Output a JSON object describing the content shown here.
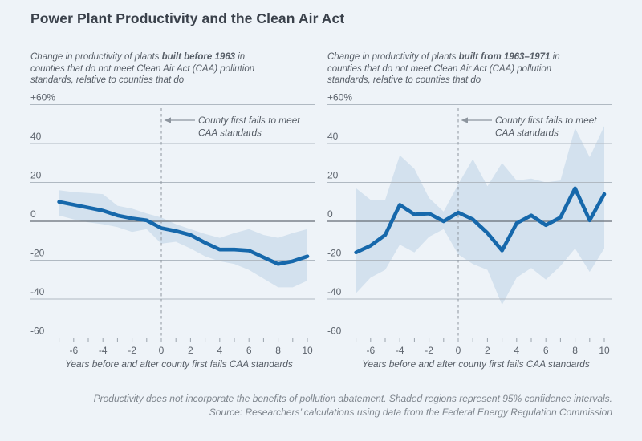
{
  "title": "Power Plant Productivity and the Clean Air Act",
  "colors": {
    "background": "#eef3f8",
    "line": "#1668ab",
    "band": "#d3e1ee",
    "grid": "#b0b9c2",
    "zero_line": "#656c75",
    "axis_line": "#9aa3ac",
    "dashed": "#8d959e",
    "title_text": "#3a414b",
    "subtitle_text": "#565d66",
    "footer_text": "#7e858d"
  },
  "chart_data": [
    {
      "type": "line",
      "subtitle": {
        "pre": "Change in productivity of plants ",
        "bold": "built before 1963",
        "post": " in counties that do not meet Clean Air Act (CAA) pollution standards, relative to counties that do"
      },
      "x": [
        -7,
        -6,
        -5,
        -4,
        -3,
        -2,
        -1,
        0,
        1,
        2,
        3,
        4,
        5,
        6,
        7,
        8,
        9,
        10
      ],
      "series": [
        {
          "name": "Productivity change (point estimate)",
          "values": [
            10,
            8.5,
            7,
            5.5,
            3,
            1.5,
            0.5,
            -3.5,
            -5,
            -7,
            -11,
            -14.5,
            -14.5,
            -15,
            -18.5,
            -22,
            -20.5,
            -18
          ]
        },
        {
          "name": "95% CI upper",
          "values": [
            16,
            15,
            14.5,
            14,
            8,
            6.5,
            4,
            2,
            -1.5,
            -4,
            -6.5,
            -8.5,
            -6,
            -4,
            -7,
            -8.5,
            -6,
            -4
          ]
        },
        {
          "name": "95% CI lower",
          "values": [
            3,
            1,
            -0.5,
            -1.5,
            -3,
            -5.5,
            -4,
            -11.5,
            -10.5,
            -14,
            -18,
            -20.5,
            -22,
            -25,
            -29.5,
            -34,
            -34,
            -30.5
          ]
        }
      ],
      "xlabel": "Years before and after county first fails CAA standards",
      "ylim": [
        -60,
        60
      ],
      "xlim": [
        -7,
        10
      ],
      "grid": true,
      "yticks": [
        "+60%",
        "40",
        "20",
        "0",
        "-20",
        "-40",
        "-60"
      ],
      "ytick_values": [
        60,
        40,
        20,
        0,
        -20,
        -40,
        -60
      ],
      "xticks": [
        -6,
        -4,
        -2,
        0,
        2,
        4,
        6,
        8,
        10
      ],
      "annotation": {
        "x": 0,
        "line1": "County first fails to meet",
        "line2": "CAA standards"
      }
    },
    {
      "type": "line",
      "subtitle": {
        "pre": "Change in productivity of plants ",
        "bold": "built from 1963–1971",
        "post": " in counties that do not meet Clean Air Act (CAA) pollution standards, relative to counties that do"
      },
      "x": [
        -7,
        -6,
        -5,
        -4,
        -3,
        -2,
        -1,
        0,
        1,
        2,
        3,
        4,
        5,
        6,
        7,
        8,
        9,
        10
      ],
      "series": [
        {
          "name": "Productivity change (point estimate)",
          "values": [
            -16,
            -12.5,
            -7,
            8.5,
            3.5,
            4,
            0,
            4.5,
            1,
            -6,
            -15,
            -1,
            3,
            -2,
            2,
            17,
            0.5,
            14
          ]
        },
        {
          "name": "95% CI upper",
          "values": [
            17,
            11,
            11,
            34,
            27,
            12,
            5,
            19,
            32,
            18,
            30,
            21,
            22,
            20,
            21,
            48,
            33,
            49
          ]
        },
        {
          "name": "95% CI lower",
          "values": [
            -37,
            -29,
            -25,
            -12,
            -16,
            -8,
            -4,
            -17,
            -22,
            -25,
            -43,
            -29,
            -24,
            -30,
            -23,
            -14,
            -26,
            -14
          ]
        }
      ],
      "xlabel": "Years before and after county first fails CAA standards",
      "ylim": [
        -60,
        60
      ],
      "xlim": [
        -7,
        10
      ],
      "grid": true,
      "yticks": [
        "+60%",
        "40",
        "20",
        "0",
        "-20",
        "-40",
        "-60"
      ],
      "ytick_values": [
        60,
        40,
        20,
        0,
        -20,
        -40,
        -60
      ],
      "xticks": [
        -6,
        -4,
        -2,
        0,
        2,
        4,
        6,
        8,
        10
      ],
      "annotation": {
        "x": 0,
        "line1": "County first fails to meet",
        "line2": "CAA standards"
      }
    }
  ],
  "footer": {
    "line1": "Productivity does not incorporate the benefits of pollution abatement. Shaded regions represent 95% confidence intervals.",
    "line2": "Source: Researchers’ calculations using data from the Federal Energy Regulation Commission"
  }
}
